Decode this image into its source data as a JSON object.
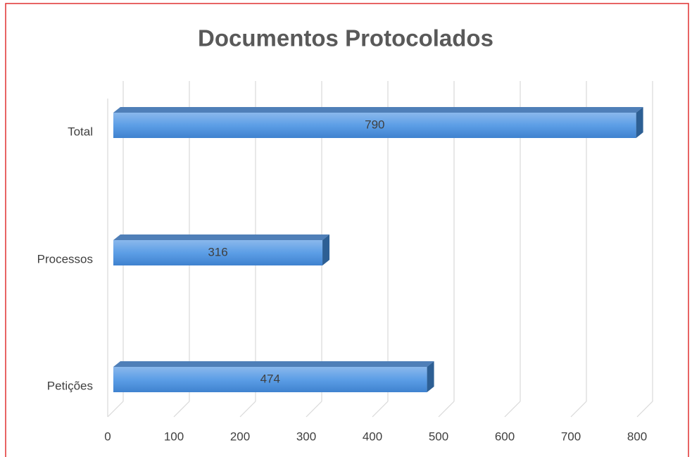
{
  "chart_data": {
    "type": "bar",
    "orientation": "horizontal",
    "title": "Documentos Protocolados",
    "categories": [
      "Total",
      "Processos",
      "Petições"
    ],
    "values": [
      790,
      316,
      474
    ],
    "color": "#4a90d9",
    "xlim": [
      0,
      800
    ],
    "xticks": [
      0,
      100,
      200,
      300,
      400,
      500,
      600,
      700,
      800
    ],
    "grid": true
  }
}
